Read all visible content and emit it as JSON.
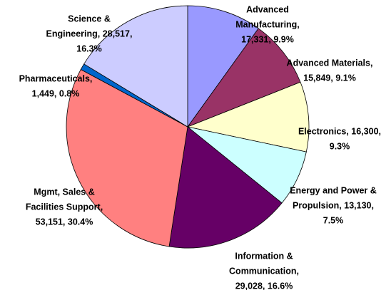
{
  "chart_data": {
    "type": "pie",
    "categories": [
      "Advanced Manufacturing",
      "Advanced Materials",
      "Electronics",
      "Energy and Power & Propulsion",
      "Information & Communication",
      "Mgmt, Sales & Facilities Support",
      "Pharmaceuticals",
      "Science & Engineering"
    ],
    "values": [
      17331,
      15849,
      16300,
      13130,
      29028,
      53151,
      1449,
      28517
    ],
    "value_labels": [
      [
        "Advanced",
        "Manufacturing,",
        "17,331, 9.9%"
      ],
      [
        "Advanced Materials,",
        "15,849, 9.1%"
      ],
      [
        "Electronics, 16,300,",
        "9.3%"
      ],
      [
        "Energy and Power &",
        "Propulsion, 13,130,",
        "7.5%"
      ],
      [
        "Information &",
        "Communication,",
        "29,028, 16.6%"
      ],
      [
        "Mgmt, Sales &",
        "Facilities Support,",
        "53,151, 30.4%"
      ],
      [
        "Pharmaceuticals,",
        "1,449, 0.8%"
      ],
      [
        "Science &",
        "Engineering, 28,517,",
        "16.3%"
      ]
    ],
    "colors": [
      "#9999ff",
      "#993366",
      "#ffffcc",
      "#ccffff",
      "#660066",
      "#ff8080",
      "#0066cc",
      "#ccccff"
    ]
  }
}
